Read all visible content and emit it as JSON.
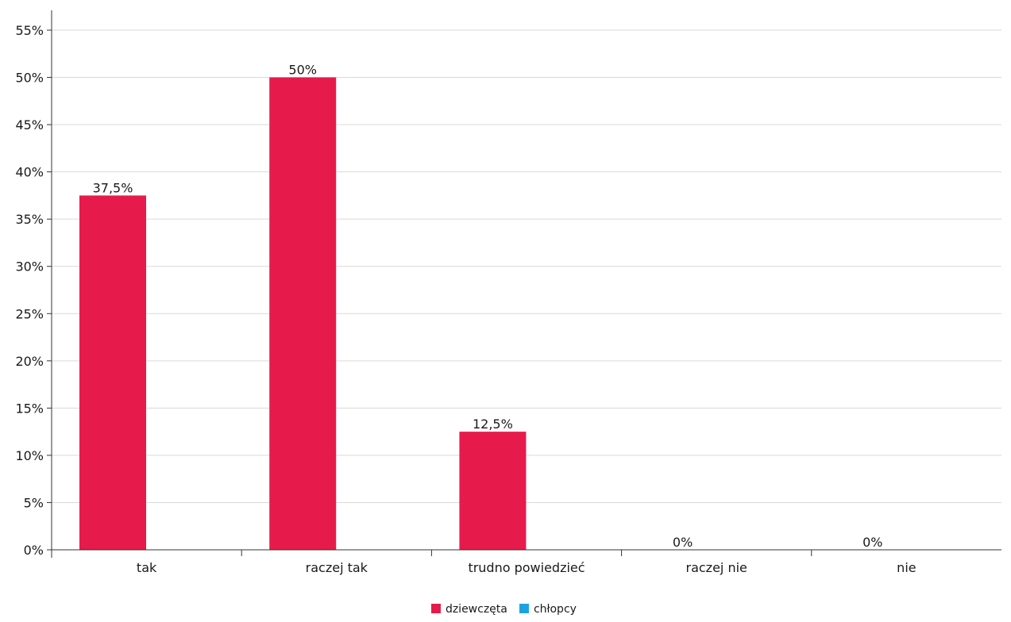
{
  "chart_data": {
    "type": "bar",
    "categories": [
      "tak",
      "raczej tak",
      "trudno powiedzieć",
      "raczej nie",
      "nie"
    ],
    "series": [
      {
        "name": "dziewczęta",
        "color": "#e61b4b",
        "values": [
          37.5,
          50,
          12.5,
          0,
          0
        ],
        "labels": [
          "37,5%",
          "50%",
          "12,5%",
          "0%",
          "0%"
        ]
      },
      {
        "name": "chłopcy",
        "color": "#1aa3e0",
        "values": [
          null,
          null,
          null,
          null,
          null
        ],
        "labels": [
          "",
          "",
          "",
          "",
          ""
        ]
      }
    ],
    "ylim": [
      0,
      55
    ],
    "yticks": [
      0,
      5,
      10,
      15,
      20,
      25,
      30,
      35,
      40,
      45,
      50,
      55
    ],
    "ytick_labels": [
      "0%",
      "5%",
      "10%",
      "15%",
      "20%",
      "25%",
      "30%",
      "35%",
      "40%",
      "45%",
      "50%",
      "55%"
    ],
    "grid": true,
    "legend_position": "bottom-center"
  }
}
